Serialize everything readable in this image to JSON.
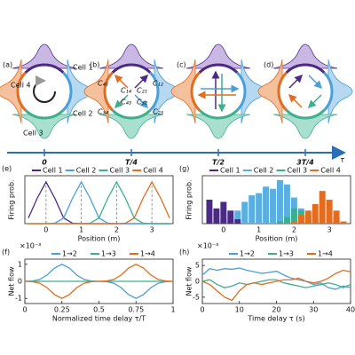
{
  "diagram": {
    "panel_labels": [
      "(a)",
      "(b)",
      "(c)",
      "(d)"
    ],
    "cell_labels": [
      "Cell 1",
      "Cell 2",
      "Cell 3",
      "Cell 4"
    ],
    "coupling_labels": [
      "C₄₁",
      "C₁₂",
      "C₁₄",
      "C₂₁",
      "C₄₃",
      "C₃₂",
      "C₃₄",
      "C₂₃"
    ],
    "time_ticks": [
      "0",
      "T/4",
      "T/2",
      "3T/4"
    ],
    "time_axis_label": "τ"
  },
  "chart_data": [
    {
      "type": "line",
      "panel_label": "(e)",
      "y_label": "Firing prob.",
      "x_label": "Position (m)",
      "xlim": [
        -0.6,
        3.6
      ],
      "ylim": [
        0,
        1.15
      ],
      "xticks": [
        0,
        1,
        2,
        3
      ],
      "dashed_guides": true,
      "x": [
        -0.5,
        -0.25,
        0,
        0.25,
        0.5,
        0.75,
        1,
        1.25,
        1.5,
        1.75,
        2,
        2.25,
        2.5,
        2.75,
        3,
        3.25,
        3.5
      ],
      "series": [
        {
          "name": "Cell 1",
          "color": "#4b2a84",
          "values": [
            0.135,
            0.61,
            1,
            0.61,
            0.135,
            0.011,
            0,
            0,
            0,
            0,
            0,
            0,
            0,
            0,
            0,
            0,
            0
          ]
        },
        {
          "name": "Cell 2",
          "color": "#4a9fd8",
          "values": [
            0,
            0,
            0,
            0.011,
            0.135,
            0.61,
            1,
            0.61,
            0.135,
            0.011,
            0,
            0,
            0,
            0,
            0,
            0,
            0
          ]
        },
        {
          "name": "Cell 3",
          "color": "#3bb08f",
          "values": [
            0,
            0,
            0,
            0,
            0,
            0,
            0,
            0.011,
            0.135,
            0.61,
            1,
            0.61,
            0.135,
            0.011,
            0,
            0,
            0
          ]
        },
        {
          "name": "Cell 4",
          "color": "#e36c1e",
          "values": [
            0,
            0,
            0,
            0,
            0,
            0,
            0,
            0,
            0,
            0,
            0,
            0.011,
            0.135,
            0.61,
            1,
            0.61,
            0.135
          ]
        }
      ]
    },
    {
      "type": "histogram",
      "panel_label": "(g)",
      "y_label": "Firing prob.",
      "x_label": "Position (m)",
      "xlim": [
        -0.6,
        3.6
      ],
      "ylim": [
        0,
        1.1
      ],
      "xticks": [
        0,
        1,
        2,
        3
      ],
      "bins": [
        -0.5,
        -0.3,
        -0.1,
        0.1,
        0.3,
        0.5,
        0.7,
        0.9,
        1.1,
        1.3,
        1.5,
        1.7,
        1.9,
        2.1,
        2.3,
        2.5,
        2.7,
        2.9,
        3.1,
        3.3,
        3.5
      ],
      "series": [
        {
          "name": "Cell 1",
          "color": "#4b2a84",
          "values": [
            0.55,
            0.35,
            0.5,
            0.3,
            0.1,
            0,
            0,
            0,
            0,
            0,
            0,
            0,
            0,
            0,
            0,
            0,
            0,
            0,
            0.15,
            0
          ]
        },
        {
          "name": "Cell 2",
          "color": "#5aaee0",
          "values": [
            0,
            0.05,
            0.1,
            0.2,
            0.3,
            0.5,
            0.65,
            0.7,
            0.85,
            0.8,
            1,
            0.9,
            0.6,
            0.35,
            0.1,
            0,
            0,
            0,
            0,
            0
          ]
        },
        {
          "name": "Cell 3",
          "color": "#3bb08f",
          "values": [
            0,
            0,
            0,
            0,
            0,
            0,
            0,
            0,
            0,
            0,
            0.05,
            0.15,
            0.35,
            0.3,
            0.2,
            0.1,
            0,
            0,
            0,
            0
          ]
        },
        {
          "name": "Cell 4",
          "color": "#e36c1e",
          "values": [
            0,
            0,
            0,
            0,
            0,
            0,
            0,
            0,
            0,
            0,
            0,
            0,
            0.05,
            0.2,
            0.3,
            0.45,
            0.75,
            0.55,
            0.3,
            0.05
          ]
        }
      ]
    },
    {
      "type": "line",
      "panel_label": "(f)",
      "y_label": "Net flow",
      "x_label": "Normalized time delay τ/T",
      "y_multiplier": "×10⁻³",
      "xlim": [
        0,
        1
      ],
      "ylim": [
        -1.3,
        1.3
      ],
      "xticks": [
        0,
        0.25,
        0.5,
        0.75,
        1
      ],
      "yticks": [
        -1,
        0,
        1
      ],
      "x": [
        0,
        0.05,
        0.1,
        0.15,
        0.2,
        0.25,
        0.3,
        0.35,
        0.4,
        0.45,
        0.5,
        0.55,
        0.6,
        0.65,
        0.7,
        0.75,
        0.8,
        0.85,
        0.9,
        0.95,
        1
      ],
      "series": [
        {
          "name": "1→2",
          "color": "#4a9fd8",
          "values": [
            0,
            0.02,
            0.11,
            0.37,
            0.78,
            1,
            0.78,
            0.37,
            0.11,
            0.02,
            0,
            -0.02,
            -0.11,
            -0.37,
            -0.78,
            -1,
            -0.78,
            -0.37,
            -0.11,
            -0.02,
            0
          ]
        },
        {
          "name": "1→3",
          "color": "#3bb08f",
          "values": [
            0,
            0,
            0,
            0,
            0,
            0,
            0,
            0,
            0,
            0,
            0,
            0,
            0,
            0,
            0,
            0,
            0,
            0,
            0,
            0,
            0
          ]
        },
        {
          "name": "1→4",
          "color": "#e36c1e",
          "values": [
            0,
            -0.02,
            -0.11,
            -0.37,
            -0.78,
            -1,
            -0.78,
            -0.37,
            -0.11,
            -0.02,
            0,
            0.02,
            0.11,
            0.37,
            0.78,
            1,
            0.78,
            0.37,
            0.11,
            0.02,
            0
          ]
        }
      ]
    },
    {
      "type": "line",
      "panel_label": "(h)",
      "y_label": "Net flow",
      "x_label": "Time delay τ (s)",
      "y_multiplier": "×10⁻³",
      "xlim": [
        0,
        40
      ],
      "ylim": [
        -7,
        7
      ],
      "xticks": [
        0,
        10,
        20,
        30,
        40
      ],
      "yticks": [
        -5,
        0,
        5
      ],
      "x": [
        0,
        2,
        4,
        6,
        8,
        10,
        12,
        14,
        16,
        18,
        20,
        22,
        24,
        26,
        28,
        30,
        32,
        34,
        36,
        38,
        40
      ],
      "series": [
        {
          "name": "1→2",
          "color": "#4a9fd8",
          "values": [
            2,
            4,
            3.5,
            4,
            3.8,
            4.2,
            3.5,
            3,
            2.5,
            2.8,
            3.2,
            2,
            1,
            0.5,
            0,
            -1,
            -0.5,
            -2,
            -2.5,
            -1.5,
            -2
          ]
        },
        {
          "name": "1→3",
          "color": "#3bb08f",
          "values": [
            0,
            0.5,
            -1,
            -2,
            -1.5,
            -0.5,
            -1,
            -0.5,
            0,
            0.5,
            0.5,
            -0.5,
            -1,
            -1.5,
            -2,
            -1.5,
            -1,
            -0.5,
            -1,
            -2,
            -1
          ]
        },
        {
          "name": "1→4",
          "color": "#e36c1e",
          "values": [
            0,
            -1,
            -3,
            -5,
            -6,
            -3,
            -1,
            -0.5,
            -1,
            -0.5,
            0,
            0.5,
            0.5,
            1,
            0,
            -0.5,
            0,
            1,
            2.5,
            3.5,
            3
          ]
        }
      ]
    }
  ]
}
